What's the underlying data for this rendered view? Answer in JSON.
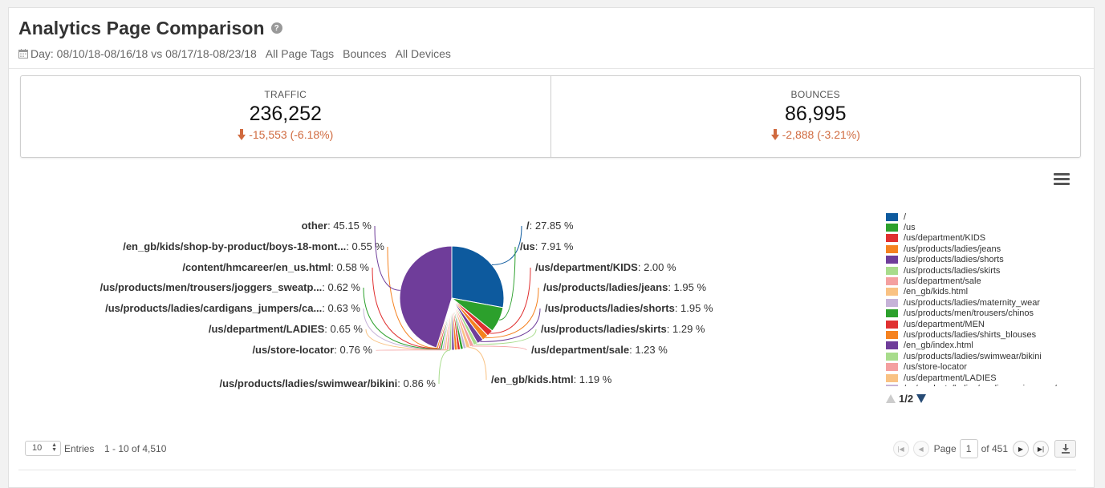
{
  "header": {
    "title": "Analytics Page Comparison",
    "help_icon": "question-circle-icon",
    "date_range": "Day: 08/10/18-08/16/18 vs 08/17/18-08/23/18",
    "page_tags": "All Page Tags",
    "metric": "Bounces",
    "devices": "All Devices"
  },
  "kpis": {
    "traffic": {
      "label": "TRAFFIC",
      "value": "236,252",
      "delta": "-15,553 (-6.18%)"
    },
    "bounces": {
      "label": "BOUNCES",
      "value": "86,995",
      "delta": "-2,888 (-3.21%)"
    },
    "delta_color": "#d06a3f"
  },
  "chart_data": {
    "type": "pie",
    "unit": "%",
    "slices": [
      {
        "name": "/",
        "value": 27.85,
        "label": "/",
        "color": "#0d5a9e"
      },
      {
        "name": "/us",
        "value": 7.91,
        "label": "/us",
        "color": "#2ca02c"
      },
      {
        "name": "/us/department/KIDS",
        "value": 2.0,
        "label": "/us/department/KIDS",
        "color": "#e03030"
      },
      {
        "name": "/us/products/ladies/jeans",
        "value": 1.95,
        "label": "/us/products/ladies/jeans",
        "color": "#f58220"
      },
      {
        "name": "/us/products/ladies/shorts",
        "value": 1.95,
        "label": "/us/products/ladies/shorts",
        "color": "#6f3d9a"
      },
      {
        "name": "/us/products/ladies/skirts",
        "value": 1.29,
        "label": "/us/products/ladies/skirts",
        "color": "#a8dc8c"
      },
      {
        "name": "/us/department/sale",
        "value": 1.23,
        "label": "/us/department/sale",
        "color": "#f4a0a0"
      },
      {
        "name": "/en_gb/kids.html",
        "value": 1.19,
        "label": "/en_gb/kids.html",
        "color": "#f9c283"
      },
      {
        "name": "/us/products/ladies/maternity_wear",
        "value": 0.95,
        "label": null,
        "color": "#c6b3d8"
      },
      {
        "name": "/us/products/men/trousers/chinos",
        "value": 0.93,
        "label": null,
        "color": "#2ca02c"
      },
      {
        "name": "/us/department/MEN",
        "value": 0.92,
        "label": null,
        "color": "#e03030"
      },
      {
        "name": "/us/products/ladies/shirts_blouses",
        "value": 0.9,
        "label": null,
        "color": "#f58220"
      },
      {
        "name": "/en_gb/index.html",
        "value": 0.88,
        "label": null,
        "color": "#6f3d9a"
      },
      {
        "name": "/us/products/ladies/swimwear/bikini",
        "value": 0.86,
        "label": "/us/products/ladies/swimwear/bikini",
        "color": "#a8dc8c"
      },
      {
        "name": "/us/store-locator",
        "value": 0.76,
        "label": "/us/store-locator",
        "color": "#f4a0a0"
      },
      {
        "name": "/us/department/LADIES",
        "value": 0.65,
        "label": "/us/department/LADIES",
        "color": "#f9c283"
      },
      {
        "name": "/us/products/ladies/cardigans_jumpers",
        "value": 0.63,
        "label": "/us/products/ladies/cardigans_jumpers/ca...",
        "color": "#c6b3d8"
      },
      {
        "name": "/us/products/men/trousers/joggers_sweatpants",
        "value": 0.62,
        "label": "/us/products/men/trousers/joggers_sweatp...",
        "color": "#2ca02c"
      },
      {
        "name": "/content/hmcareer/en_us.html",
        "value": 0.58,
        "label": "/content/hmcareer/en_us.html",
        "color": "#e03030"
      },
      {
        "name": "/en_gb/kids/shop-by-product/boys-18-months",
        "value": 0.55,
        "label": "/en_gb/kids/shop-by-product/boys-18-mont...",
        "color": "#f58220"
      },
      {
        "name": "other",
        "value": 45.15,
        "label": "other",
        "color": "#6f3d9a"
      }
    ]
  },
  "legend": {
    "items": [
      {
        "label": "/",
        "color": "#0d5a9e"
      },
      {
        "label": "/us",
        "color": "#2ca02c"
      },
      {
        "label": "/us/department/KIDS",
        "color": "#e03030"
      },
      {
        "label": "/us/products/ladies/jeans",
        "color": "#f58220"
      },
      {
        "label": "/us/products/ladies/shorts",
        "color": "#6f3d9a"
      },
      {
        "label": "/us/products/ladies/skirts",
        "color": "#a8dc8c"
      },
      {
        "label": "/us/department/sale",
        "color": "#f4a0a0"
      },
      {
        "label": "/en_gb/kids.html",
        "color": "#f9c283"
      },
      {
        "label": "/us/products/ladies/maternity_wear",
        "color": "#c6b3d8"
      },
      {
        "label": "/us/products/men/trousers/chinos",
        "color": "#2ca02c"
      },
      {
        "label": "/us/department/MEN",
        "color": "#e03030"
      },
      {
        "label": "/us/products/ladies/shirts_blouses",
        "color": "#f58220"
      },
      {
        "label": "/en_gb/index.html",
        "color": "#6f3d9a"
      },
      {
        "label": "/us/products/ladies/swimwear/bikini",
        "color": "#a8dc8c"
      },
      {
        "label": "/us/store-locator",
        "color": "#f4a0a0"
      },
      {
        "label": "/us/department/LADIES",
        "color": "#f9c283"
      },
      {
        "label": "/us/products/ladies/cardigans_jumpers/",
        "color": "#c6b3d8"
      }
    ],
    "page": "1/2"
  },
  "footer": {
    "entries_value": "10",
    "entries_label": "Entries",
    "range": "1 - 10 of 4,510",
    "page_label": "Page",
    "page_value": "1",
    "of_label": "of 451"
  }
}
